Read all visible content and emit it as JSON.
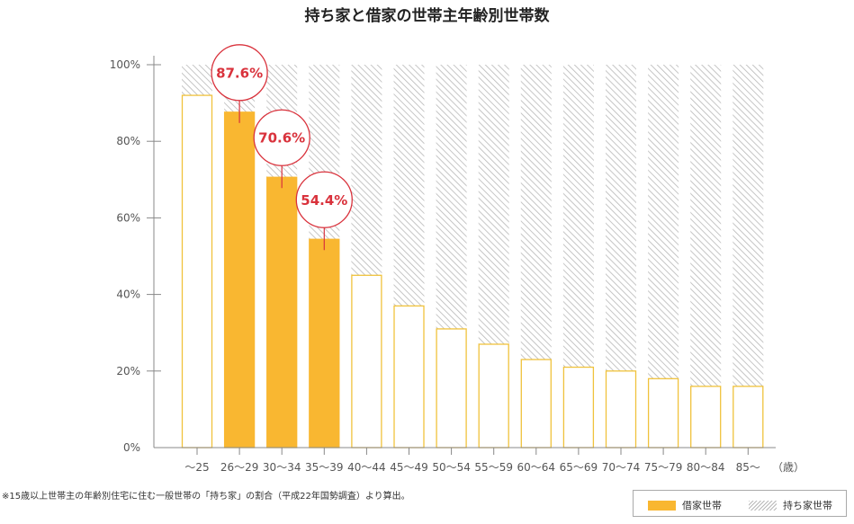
{
  "title": "持ち家と借家の世帯主年齢別世帯数",
  "footnote": "※15歳以上世帯主の年齢別住宅に住む一般世帯の「持ち家」の割合（平成22年国勢調査）より算出。",
  "chart_data": {
    "type": "bar",
    "stacked": true,
    "categories": [
      "～25",
      "26～29",
      "30～34",
      "35～39",
      "40～44",
      "45～49",
      "50～54",
      "55～59",
      "60～64",
      "65～69",
      "70～74",
      "75～79",
      "80～84",
      "85～"
    ],
    "x_unit_label": "（歳）",
    "series": [
      {
        "name": "借家世帯",
        "values": [
          92,
          87.6,
          70.6,
          54.4,
          45,
          37,
          31,
          27,
          23,
          21,
          20,
          18,
          16,
          16
        ]
      },
      {
        "name": "持ち家世帯",
        "values": [
          8,
          12.4,
          29.4,
          45.6,
          55,
          63,
          69,
          73,
          77,
          79,
          80,
          82,
          84,
          84
        ]
      }
    ],
    "highlight_indices": [
      1,
      2,
      3
    ],
    "callouts": [
      {
        "index": 1,
        "label": "87.6%"
      },
      {
        "index": 2,
        "label": "70.6%"
      },
      {
        "index": 3,
        "label": "54.4%"
      }
    ],
    "yticks": [
      "0%",
      "20%",
      "40%",
      "60%",
      "80%",
      "100%"
    ],
    "ylim": [
      0,
      100
    ],
    "grid": false,
    "legend_position": "bottom-right",
    "colors": {
      "rent_fill": "#f9b731",
      "rent_outline": "#f0c23c",
      "own_hatch": "#b8b8b8",
      "axis": "#888888",
      "callout": "#d9323c"
    }
  }
}
